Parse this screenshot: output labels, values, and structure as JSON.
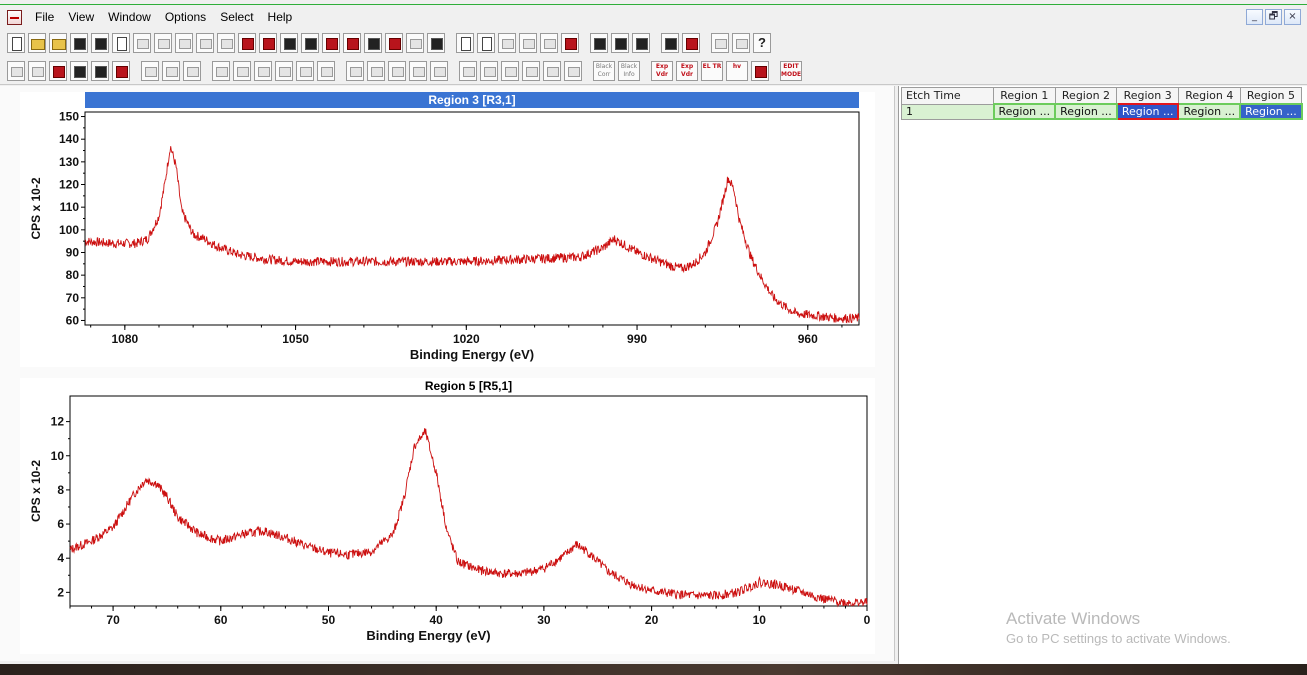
{
  "menu": {
    "items": [
      "File",
      "View",
      "Window",
      "Options",
      "Select",
      "Help"
    ]
  },
  "window_controls": {
    "minimize": "_",
    "restore": "🗗",
    "close": "×"
  },
  "toolbar_row2_words": [
    "Black Corr",
    "Black Info",
    "Exp Vdr",
    "Exp Vdr",
    "EL TR",
    "hv",
    "EDIT MODE"
  ],
  "table": {
    "headers": [
      "Etch Time",
      "Region 1",
      "Region 2",
      "Region 3",
      "Region 4",
      "Region 5"
    ],
    "row": [
      "1",
      "Region ...",
      "Region ...",
      "Region ...",
      "Region ...",
      "Region ..."
    ]
  },
  "watermark": {
    "line1": "Activate Windows",
    "line2": "Go to PC settings to activate Windows."
  },
  "colors": {
    "trace": "#cc1010",
    "title_bar": "#3a74d3",
    "selected_red": "#e3161d",
    "grid_green": "#6ccc5c"
  },
  "chart_data": [
    {
      "type": "line",
      "title": "Region 3 [R3,1]",
      "xlabel": "Binding Energy (eV)",
      "ylabel": "CPS x 10-2",
      "x_reversed": true,
      "xlim": [
        1087,
        951
      ],
      "ylim": [
        58,
        152
      ],
      "x_ticks": [
        1080,
        1050,
        1020,
        990,
        960
      ],
      "y_ticks": [
        60,
        70,
        80,
        90,
        100,
        110,
        120,
        130,
        140,
        150
      ],
      "x": [
        1087,
        1082,
        1078,
        1076,
        1074,
        1073,
        1072,
        1071,
        1070,
        1068,
        1066,
        1064,
        1060,
        1055,
        1050,
        1040,
        1030,
        1020,
        1010,
        1000,
        996,
        994,
        992,
        990,
        987,
        984,
        982,
        980,
        978,
        976,
        975,
        974,
        973,
        972,
        970,
        968,
        966,
        964,
        962,
        958,
        955,
        951
      ],
      "values": [
        95,
        94,
        94,
        96,
        106,
        120,
        137,
        128,
        108,
        98,
        96,
        93,
        89,
        87,
        86,
        86,
        86,
        86,
        87,
        88,
        92,
        96,
        93,
        90,
        87,
        84,
        83,
        85,
        90,
        102,
        112,
        123,
        118,
        104,
        88,
        78,
        70,
        66,
        63,
        62,
        61,
        61
      ]
    },
    {
      "type": "line",
      "title": "Region 5 [R5,1]",
      "xlabel": "Binding Energy (eV)",
      "ylabel": "CPS x 10-2",
      "x_reversed": true,
      "xlim": [
        74,
        0
      ],
      "ylim": [
        1.2,
        13.5
      ],
      "x_ticks": [
        70,
        60,
        50,
        40,
        30,
        20,
        10,
        0
      ],
      "y_ticks": [
        2,
        4,
        6,
        8,
        10,
        12
      ],
      "x": [
        74,
        72,
        70,
        69,
        68,
        67,
        66,
        65,
        64,
        62,
        60,
        58,
        56,
        54,
        52,
        50,
        48,
        46,
        44,
        43,
        42,
        41,
        40,
        39,
        38,
        36,
        34,
        32,
        30,
        28,
        27,
        26,
        25,
        24,
        22,
        20,
        18,
        16,
        14,
        12,
        10,
        8,
        6,
        4,
        2,
        0
      ],
      "values": [
        4.5,
        5.0,
        5.8,
        6.8,
        7.8,
        8.6,
        8.4,
        7.6,
        6.4,
        5.4,
        5.0,
        5.4,
        5.6,
        5.2,
        4.7,
        4.3,
        4.2,
        4.4,
        5.4,
        7.5,
        10.6,
        11.4,
        9.0,
        5.6,
        3.8,
        3.3,
        3.1,
        3.1,
        3.4,
        4.2,
        4.8,
        4.4,
        3.8,
        3.2,
        2.5,
        2.1,
        1.9,
        1.8,
        1.8,
        2.0,
        2.6,
        2.4,
        2.0,
        1.6,
        1.4,
        1.4
      ]
    }
  ]
}
